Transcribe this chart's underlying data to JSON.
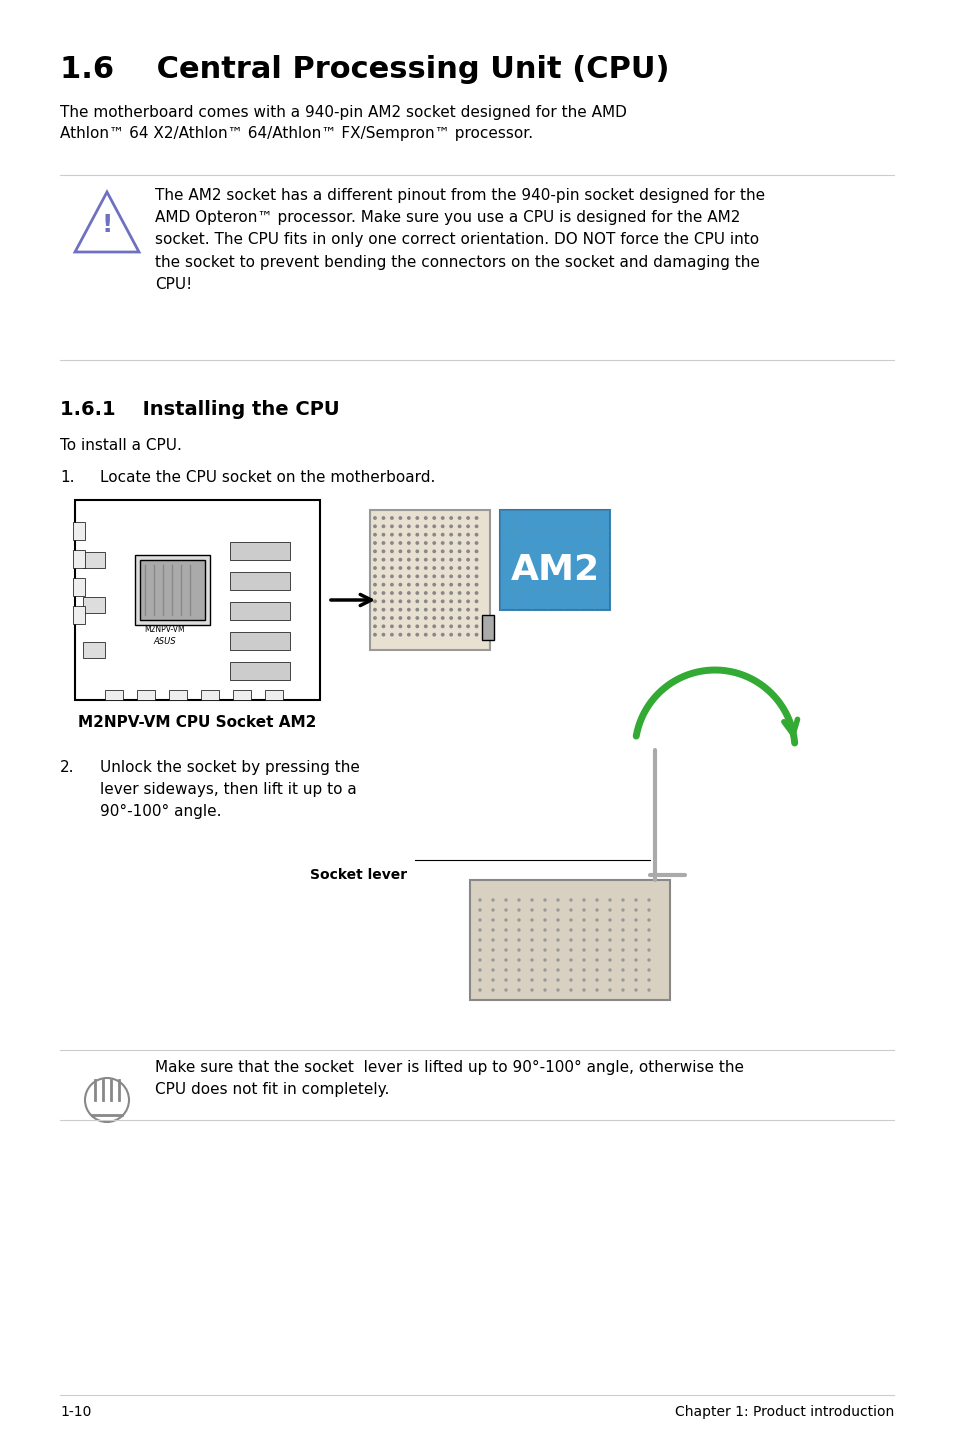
{
  "title": "1.6    Central Processing Unit (CPU)",
  "title_fontsize": 22,
  "title_bold": true,
  "subtitle": "The motherboard comes with a 940-pin AM2 socket designed for the AMD\nAthlon™ 64 X2/Athlon™ 64/Athlon™ FX/Sempron™ processor.",
  "subtitle_fontsize": 11,
  "warning_text": "The AM2 socket has a different pinout from the 940-pin socket designed for the\nAMD Opteron™ processor. Make sure you use a CPU is designed for the AM2\nsocket. The CPU fits in only one correct orientation. DO NOT force the CPU into\nthe socket to prevent bending the connectors on the socket and damaging the\nCPU!",
  "warning_fontsize": 11,
  "section_title": "1.6.1    Installing the CPU",
  "section_title_fontsize": 14,
  "section_title_bold": true,
  "install_intro": "To install a CPU.",
  "install_intro_fontsize": 11,
  "step1_num": "1.",
  "step1_text": "Locate the CPU socket on the motherboard.",
  "step1_fontsize": 11,
  "caption": "M2NPV-VM CPU Socket AM2",
  "caption_bold": true,
  "caption_fontsize": 11,
  "step2_num": "2.",
  "step2_text": "Unlock the socket by pressing the\nlever sideways, then lift it up to a\n90°-100° angle.",
  "step2_fontsize": 11,
  "socket_lever_label": "Socket lever",
  "socket_lever_fontsize": 10,
  "note_text": "Make sure that the socket  lever is lifted up to 90°-100° angle, otherwise the\nCPU does not fit in completely.",
  "note_fontsize": 11,
  "footer_left": "1-10",
  "footer_right": "Chapter 1: Product introduction",
  "footer_fontsize": 10,
  "bg_color": "#ffffff",
  "text_color": "#000000",
  "line_color": "#cccccc",
  "warning_icon_color": "#7070c0",
  "am2_bg_color": "#4499cc"
}
